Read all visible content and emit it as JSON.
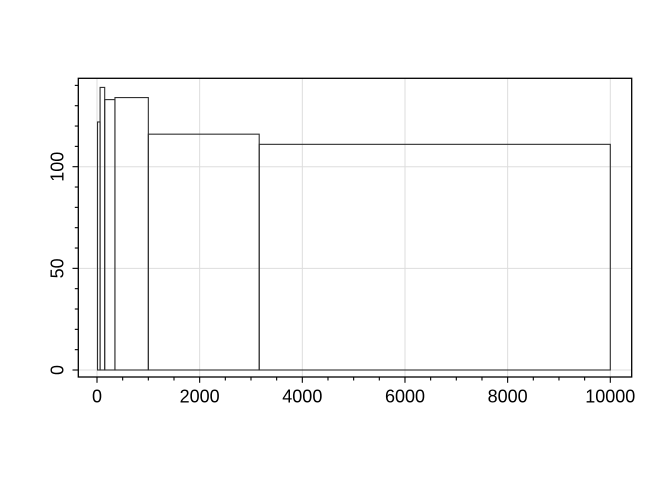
{
  "chart_data": {
    "type": "bar",
    "subtype": "variable-width-histogram-outline",
    "title": "",
    "xlabel": "",
    "ylabel": "",
    "bins": [
      {
        "x1": 10,
        "x2": 60,
        "height": 122
      },
      {
        "x1": 60,
        "x2": 150,
        "height": 139
      },
      {
        "x1": 150,
        "x2": 350,
        "height": 133
      },
      {
        "x1": 350,
        "x2": 1000,
        "height": 134
      },
      {
        "x1": 1000,
        "x2": 3160,
        "height": 116
      },
      {
        "x1": 3160,
        "x2": 10000,
        "height": 111
      }
    ],
    "x_axis": {
      "tick_values": [
        0,
        2000,
        4000,
        6000,
        8000,
        10000
      ],
      "tick_labels": [
        "0",
        "2000",
        "4000",
        "6000",
        "8000",
        "10000"
      ],
      "minor_step": 500,
      "minor_min": 500,
      "minor_max": 9500
    },
    "y_axis": {
      "tick_values": [
        0,
        50,
        100
      ],
      "tick_labels": [
        "0",
        "50",
        "100"
      ],
      "minor_step": 10,
      "minor_min": 0,
      "minor_max": 140
    },
    "xlim": [
      -400,
      10400
    ],
    "ylim": [
      -3.5,
      143.6
    ],
    "grid": true,
    "legend": null,
    "bar_fill": "none",
    "colors": {
      "bar_stroke": "#2e2e2e",
      "grid": "#dddddd",
      "axis": "#000000",
      "text": "#000000",
      "background": "#ffffff"
    }
  }
}
